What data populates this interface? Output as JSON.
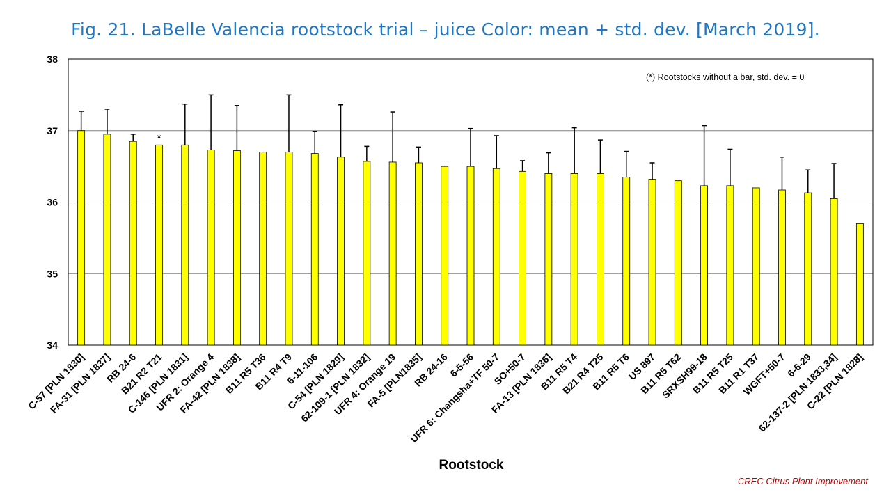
{
  "chart_data": {
    "type": "bar",
    "title": "Fig. 21. LaBelle Valencia rootstock trial – juice Color: mean + std. dev. [March 2019].",
    "xlabel": "Rootstock",
    "ylabel": "",
    "ylim": [
      34,
      38
    ],
    "yticks": [
      "34",
      "35",
      "36",
      "37",
      "38"
    ],
    "grid": true,
    "bar_color": "#ffff00",
    "note": "(*) Rootstocks without  a bar, std. dev. = 0",
    "categories": [
      "C-57 [PLN 1830]",
      "FA-31 [PLN 1837]",
      "RB 24-6",
      "B21 R2 T21",
      "C-146 [PLN 1831]",
      "UFR 2: Orange 4",
      "FA-42 [PLN 1838]",
      "B11 R5 T36",
      "B11 R4 T9",
      "6-11-106",
      "C-54 [PLN 1829]",
      "62-109-1 [PLN 1832]",
      "UFR 4: Orange 19",
      "FA-5 [PLN1835]",
      "RB 24-16",
      "6-5-56",
      "UFR 6: Changsha+TF 50-7",
      "SO+50-7",
      "FA-13 [PLN 1836]",
      "B11 R5 T4",
      "B21 R4 T25",
      "B11 R5 T6",
      "US 897",
      "B11 R5 T62",
      "SRXSH99-18",
      "B11 R5 T25",
      "B11 R1 T37",
      "WGFT+50-7",
      "6-6-29",
      "62-137-2 [PLN 1833,34]",
      "C-22 [PLN 1828]"
    ],
    "values": [
      37.0,
      36.95,
      36.85,
      36.8,
      36.8,
      36.73,
      36.72,
      36.7,
      36.7,
      36.68,
      36.63,
      36.57,
      36.56,
      36.55,
      36.5,
      36.5,
      36.47,
      36.43,
      36.4,
      36.4,
      36.4,
      36.35,
      36.32,
      36.3,
      36.23,
      36.23,
      36.2,
      36.17,
      36.13,
      36.05,
      35.7
    ],
    "std_dev": [
      0.27,
      0.35,
      0.1,
      0,
      0.57,
      0.77,
      0.63,
      0,
      0.8,
      0.31,
      0.73,
      0.21,
      0.7,
      0.22,
      0,
      0.53,
      0.46,
      0.15,
      0.29,
      0.64,
      0.47,
      0.36,
      0.23,
      0,
      0.84,
      0.51,
      0,
      0.46,
      0.32,
      0.49,
      0
    ],
    "marked": [
      3
    ]
  },
  "marker_symbol": "*",
  "credit": "CREC Citrus Plant Improvement"
}
